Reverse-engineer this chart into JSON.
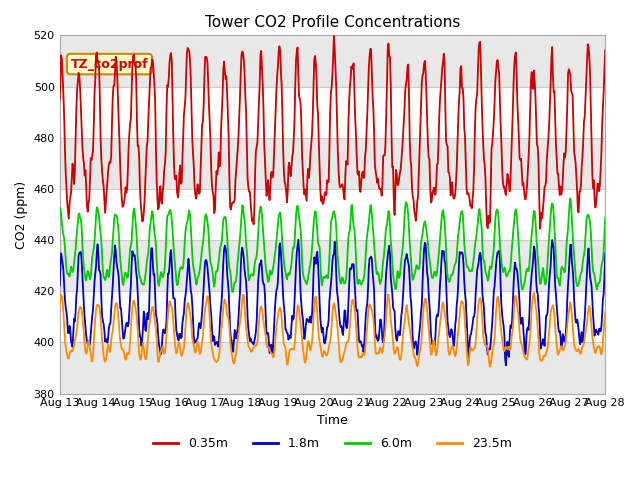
{
  "title": "Tower CO2 Profile Concentrations",
  "xlabel": "Time",
  "ylabel": "CO2 (ppm)",
  "ylim": [
    380,
    520
  ],
  "yticks": [
    380,
    400,
    420,
    440,
    460,
    480,
    500,
    520
  ],
  "xlim": [
    0,
    360
  ],
  "xtick_labels": [
    "Aug 13",
    "Aug 14",
    "Aug 15",
    "Aug 16",
    "Aug 17",
    "Aug 18",
    "Aug 19",
    "Aug 20",
    "Aug 21",
    "Aug 22",
    "Aug 23",
    "Aug 24",
    "Aug 25",
    "Aug 26",
    "Aug 27",
    "Aug 28"
  ],
  "xtick_positions": [
    0,
    24,
    48,
    72,
    96,
    120,
    144,
    168,
    192,
    216,
    240,
    264,
    288,
    312,
    336,
    360
  ],
  "legend_labels": [
    "0.35m",
    "1.8m",
    "6.0m",
    "23.5m"
  ],
  "line_colors": [
    "#cc0000",
    "#0000cc",
    "#00cc00",
    "#ff8c00"
  ],
  "annotation_text": "TZ_co2prof",
  "annotation_bbox_facecolor": "#ffffcc",
  "annotation_bbox_edgecolor": "#cc8800",
  "background_color": "#ffffff",
  "plot_bgcolor": "#ffffff",
  "band_colors": [
    "#e8e8e8",
    "#ffffff"
  ],
  "grid_color": "#cccccc",
  "n_points": 721,
  "seed": 42
}
